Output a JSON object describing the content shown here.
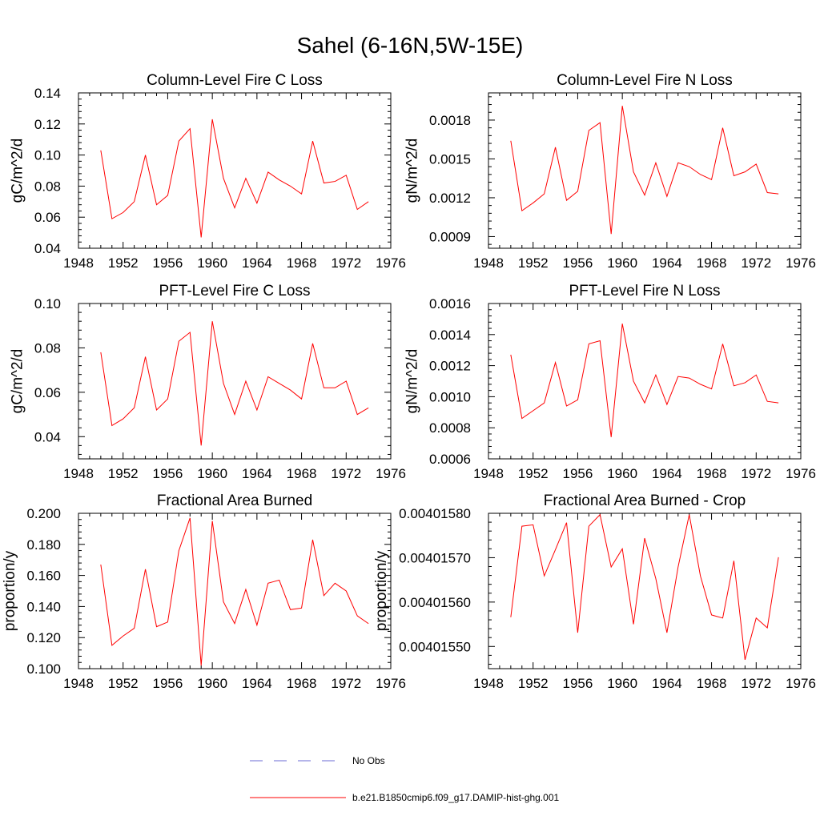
{
  "figure": {
    "title": "Sahel (6-16N,5W-15E)"
  },
  "legend": {
    "items": [
      {
        "label": "No Obs",
        "color": "#6b6bd6",
        "style": "dashed"
      },
      {
        "label": "b.e21.B1850cmip6.f09_g17.DAMIP-hist-ghg.001",
        "color": "#ff0000",
        "style": "solid"
      }
    ]
  },
  "chart_data": [
    {
      "type": "line",
      "title": "Column-Level Fire C Loss",
      "xlabel": "",
      "ylabel": "gC/m^2/d",
      "xlim": [
        1948,
        1976
      ],
      "ylim": [
        0.04,
        0.14
      ],
      "xticks": [
        1948,
        1952,
        1956,
        1960,
        1964,
        1968,
        1972,
        1976
      ],
      "xtick_labels": [
        "1948",
        "1952",
        "1956",
        "1960",
        "1964",
        "1968",
        "1972",
        "1976"
      ],
      "yticks": [
        0.04,
        0.06,
        0.08,
        0.1,
        0.12,
        0.14
      ],
      "ytick_labels": [
        "0.04",
        "0.06",
        "0.08",
        "0.10",
        "0.12",
        "0.14"
      ],
      "x": [
        1950,
        1951,
        1952,
        1953,
        1954,
        1955,
        1956,
        1957,
        1958,
        1959,
        1960,
        1961,
        1962,
        1963,
        1964,
        1965,
        1966,
        1967,
        1968,
        1969,
        1970,
        1971,
        1972,
        1973,
        1974
      ],
      "series": [
        {
          "color": "#ff0000",
          "values": [
            0.103,
            0.059,
            0.063,
            0.07,
            0.1,
            0.068,
            0.074,
            0.109,
            0.117,
            0.047,
            0.123,
            0.085,
            0.066,
            0.085,
            0.069,
            0.089,
            0.084,
            0.08,
            0.075,
            0.109,
            0.082,
            0.083,
            0.087,
            0.065,
            0.07
          ]
        }
      ]
    },
    {
      "type": "line",
      "title": "Column-Level Fire N Loss",
      "xlabel": "",
      "ylabel": "gN/m^2/d",
      "xlim": [
        1948,
        1976
      ],
      "ylim": [
        0.00081,
        0.00201
      ],
      "xticks": [
        1948,
        1952,
        1956,
        1960,
        1964,
        1968,
        1972,
        1976
      ],
      "xtick_labels": [
        "1948",
        "1952",
        "1956",
        "1960",
        "1964",
        "1968",
        "1972",
        "1976"
      ],
      "yticks": [
        0.0009,
        0.0012,
        0.0015,
        0.0018
      ],
      "ytick_labels": [
        "0.0009",
        "0.0012",
        "0.0015",
        "0.0018"
      ],
      "x": [
        1950,
        1951,
        1952,
        1953,
        1954,
        1955,
        1956,
        1957,
        1958,
        1959,
        1960,
        1961,
        1962,
        1963,
        1964,
        1965,
        1966,
        1967,
        1968,
        1969,
        1970,
        1971,
        1972,
        1973,
        1974
      ],
      "series": [
        {
          "color": "#ff0000",
          "values": [
            0.00164,
            0.0011,
            0.00116,
            0.00123,
            0.00159,
            0.00118,
            0.00125,
            0.00172,
            0.00178,
            0.00092,
            0.00191,
            0.0014,
            0.00122,
            0.00147,
            0.00121,
            0.00147,
            0.00144,
            0.00138,
            0.00134,
            0.00174,
            0.00137,
            0.0014,
            0.00146,
            0.00124,
            0.00123
          ]
        }
      ]
    },
    {
      "type": "line",
      "title": "PFT-Level Fire C Loss",
      "xlabel": "",
      "ylabel": "gC/m^2/d",
      "xlim": [
        1948,
        1976
      ],
      "ylim": [
        0.03,
        0.1
      ],
      "xticks": [
        1948,
        1952,
        1956,
        1960,
        1964,
        1968,
        1972,
        1976
      ],
      "xtick_labels": [
        "1948",
        "1952",
        "1956",
        "1960",
        "1964",
        "1968",
        "1972",
        "1976"
      ],
      "yticks": [
        0.04,
        0.06,
        0.08,
        0.1
      ],
      "ytick_labels": [
        "0.04",
        "0.06",
        "0.08",
        "0.10"
      ],
      "x": [
        1950,
        1951,
        1952,
        1953,
        1954,
        1955,
        1956,
        1957,
        1958,
        1959,
        1960,
        1961,
        1962,
        1963,
        1964,
        1965,
        1966,
        1967,
        1968,
        1969,
        1970,
        1971,
        1972,
        1973,
        1974
      ],
      "series": [
        {
          "color": "#ff0000",
          "values": [
            0.078,
            0.045,
            0.048,
            0.053,
            0.076,
            0.052,
            0.057,
            0.083,
            0.087,
            0.036,
            0.092,
            0.064,
            0.05,
            0.065,
            0.052,
            0.067,
            0.064,
            0.061,
            0.057,
            0.082,
            0.062,
            0.062,
            0.065,
            0.05,
            0.053
          ]
        }
      ]
    },
    {
      "type": "line",
      "title": "PFT-Level Fire N Loss",
      "xlabel": "",
      "ylabel": "gN/m^2/d",
      "xlim": [
        1948,
        1976
      ],
      "ylim": [
        0.0006,
        0.0016
      ],
      "xticks": [
        1948,
        1952,
        1956,
        1960,
        1964,
        1968,
        1972,
        1976
      ],
      "xtick_labels": [
        "1948",
        "1952",
        "1956",
        "1960",
        "1964",
        "1968",
        "1972",
        "1976"
      ],
      "yticks": [
        0.0006,
        0.0008,
        0.001,
        0.0012,
        0.0014,
        0.0016
      ],
      "ytick_labels": [
        "0.0006",
        "0.0008",
        "0.0010",
        "0.0012",
        "0.0014",
        "0.0016"
      ],
      "x": [
        1950,
        1951,
        1952,
        1953,
        1954,
        1955,
        1956,
        1957,
        1958,
        1959,
        1960,
        1961,
        1962,
        1963,
        1964,
        1965,
        1966,
        1967,
        1968,
        1969,
        1970,
        1971,
        1972,
        1973,
        1974
      ],
      "series": [
        {
          "color": "#ff0000",
          "values": [
            0.00127,
            0.00086,
            0.00091,
            0.00096,
            0.00122,
            0.00094,
            0.00098,
            0.00134,
            0.00136,
            0.00074,
            0.00147,
            0.0011,
            0.00096,
            0.00114,
            0.00095,
            0.00113,
            0.00112,
            0.00108,
            0.00105,
            0.00134,
            0.00107,
            0.00109,
            0.00114,
            0.00097,
            0.00096
          ]
        }
      ]
    },
    {
      "type": "line",
      "title": "Fractional Area Burned",
      "xlabel": "",
      "ylabel": "proportion/y",
      "xlim": [
        1948,
        1976
      ],
      "ylim": [
        0.1,
        0.2
      ],
      "xticks": [
        1948,
        1952,
        1956,
        1960,
        1964,
        1968,
        1972,
        1976
      ],
      "xtick_labels": [
        "1948",
        "1952",
        "1956",
        "1960",
        "1964",
        "1968",
        "1972",
        "1976"
      ],
      "yticks": [
        0.1,
        0.12,
        0.14,
        0.16,
        0.18,
        0.2
      ],
      "ytick_labels": [
        "0.100",
        "0.120",
        "0.140",
        "0.160",
        "0.180",
        "0.200"
      ],
      "x": [
        1950,
        1951,
        1952,
        1953,
        1954,
        1955,
        1956,
        1957,
        1958,
        1959,
        1960,
        1961,
        1962,
        1963,
        1964,
        1965,
        1966,
        1967,
        1968,
        1969,
        1970,
        1971,
        1972,
        1973,
        1974
      ],
      "series": [
        {
          "color": "#ff0000",
          "values": [
            0.167,
            0.115,
            0.121,
            0.126,
            0.164,
            0.127,
            0.13,
            0.176,
            0.197,
            0.102,
            0.195,
            0.143,
            0.129,
            0.151,
            0.128,
            0.155,
            0.157,
            0.138,
            0.139,
            0.183,
            0.147,
            0.155,
            0.15,
            0.134,
            0.129
          ]
        }
      ]
    },
    {
      "type": "line",
      "title": "Fractional Area Burned - Crop",
      "xlabel": "",
      "ylabel": "proportion/y",
      "xlim": [
        1948,
        1976
      ],
      "ylim": [
        0.00401545,
        0.0040158
      ],
      "xticks": [
        1948,
        1952,
        1956,
        1960,
        1964,
        1968,
        1972,
        1976
      ],
      "xtick_labels": [
        "1948",
        "1952",
        "1956",
        "1960",
        "1964",
        "1968",
        "1972",
        "1976"
      ],
      "yticks": [
        0.0040155,
        0.0040156,
        0.0040157,
        0.0040158
      ],
      "ytick_labels": [
        "0.00401550",
        "0.00401560",
        "0.00401570",
        "0.00401580"
      ],
      "x": [
        1950,
        1951,
        1952,
        1953,
        1954,
        1955,
        1956,
        1957,
        1958,
        1959,
        1960,
        1961,
        1962,
        1963,
        1964,
        1965,
        1966,
        1967,
        1968,
        1969,
        1970,
        1971,
        1972,
        1973,
        1974
      ],
      "series": [
        {
          "color": "#ff0000",
          "values": [
            0.004015566,
            0.004015771,
            0.004015774,
            0.004015659,
            0.004015718,
            0.004015779,
            0.004015531,
            0.004015771,
            0.004015797,
            0.004015679,
            0.00401572,
            0.00401555,
            0.004015744,
            0.004015653,
            0.004015531,
            0.004015679,
            0.004015797,
            0.004015659,
            0.004015571,
            0.004015564,
            0.004015693,
            0.00401547,
            0.004015564,
            0.004015542,
            0.004015701
          ]
        }
      ]
    }
  ]
}
